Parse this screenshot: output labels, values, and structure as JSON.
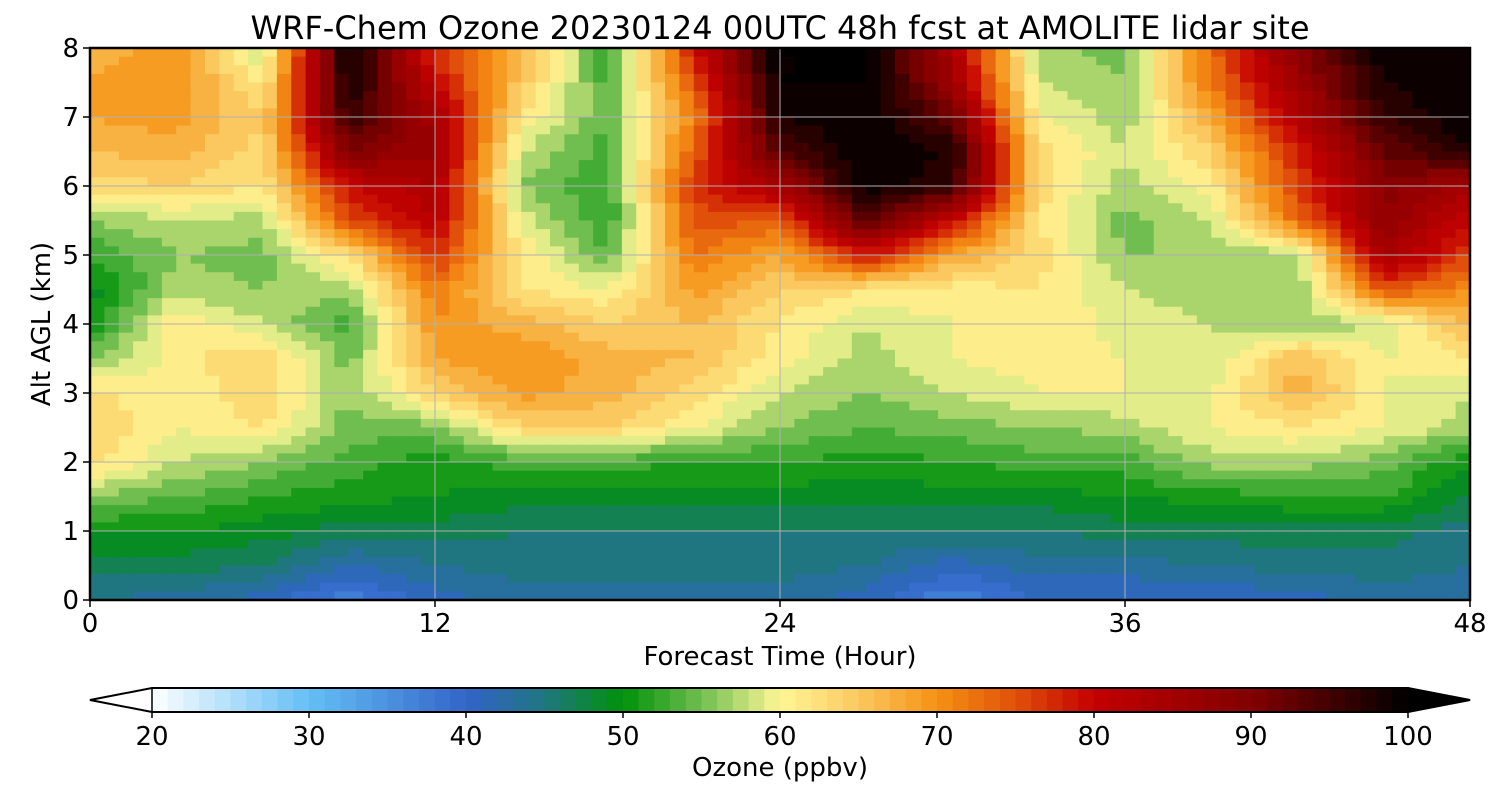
{
  "chart_data": {
    "type": "heatmap",
    "title": "WRF-Chem Ozone  20230124 00UTC 48h fcst at AMOLITE lidar site",
    "xlabel": "Forecast Time (Hour)",
    "ylabel": "Alt AGL (km)",
    "xlim": [
      0,
      48
    ],
    "ylim": [
      0,
      8
    ],
    "x_ticks": [
      0,
      12,
      24,
      36,
      48
    ],
    "y_ticks": [
      0,
      1,
      2,
      3,
      4,
      5,
      6,
      7,
      8
    ],
    "grid": true,
    "colorbar": {
      "label": "Ozone  (ppbv)",
      "min": 20,
      "max": 100,
      "ticks": [
        20,
        30,
        40,
        50,
        60,
        70,
        80,
        90,
        100
      ],
      "extend": "both",
      "orientation": "horizontal",
      "placement": "bottom"
    },
    "x": [
      0,
      3,
      6,
      9,
      12,
      15,
      18,
      21,
      24,
      27,
      30,
      33,
      36,
      39,
      42,
      45,
      48
    ],
    "y": [
      0,
      0.5,
      1,
      1.5,
      2,
      2.5,
      3,
      3.5,
      4,
      4.5,
      5,
      5.5,
      6,
      6.5,
      7,
      7.5,
      8
    ],
    "z": [
      [
        44,
        43,
        41,
        37,
        41,
        43,
        43,
        43,
        43,
        41,
        36,
        40,
        40,
        40,
        41,
        43,
        43
      ],
      [
        47,
        47,
        46,
        42,
        44,
        45,
        45,
        45,
        45,
        44,
        41,
        43,
        43,
        44,
        45,
        45,
        44
      ],
      [
        50,
        50,
        49,
        47,
        47,
        46,
        46,
        46,
        46,
        46,
        46,
        46,
        47,
        47,
        47,
        47,
        45
      ],
      [
        56,
        54,
        52,
        51,
        50,
        49,
        49,
        49,
        49,
        49,
        49,
        49,
        50,
        51,
        52,
        52,
        48
      ],
      [
        63,
        58,
        56,
        53,
        51,
        53,
        53,
        52,
        52,
        51,
        52,
        53,
        53,
        57,
        57,
        55,
        50
      ],
      [
        64,
        60,
        62,
        55,
        55,
        64,
        64,
        60,
        56,
        54,
        55,
        56,
        57,
        60,
        62,
        60,
        57
      ],
      [
        63,
        60,
        64,
        56,
        64,
        69,
        67,
        63,
        58,
        56,
        58,
        60,
        60,
        60,
        67,
        60,
        58
      ],
      [
        56,
        61,
        64,
        55,
        68,
        70,
        67,
        66,
        61,
        57,
        60,
        61,
        60,
        58,
        66,
        60,
        62
      ],
      [
        50,
        62,
        58,
        53,
        70,
        67,
        64,
        66,
        62,
        58,
        60,
        62,
        59,
        58,
        56,
        58,
        67
      ],
      [
        49,
        57,
        56,
        57,
        72,
        62,
        60,
        69,
        64,
        62,
        61,
        62,
        58,
        57,
        56,
        75,
        70
      ],
      [
        52,
        56,
        55,
        63,
        77,
        62,
        54,
        72,
        68,
        79,
        68,
        63,
        56,
        56,
        57,
        85,
        76
      ],
      [
        56,
        58,
        57,
        75,
        82,
        59,
        52,
        75,
        74,
        94,
        80,
        62,
        55,
        58,
        73,
        88,
        80
      ],
      [
        63,
        64,
        62,
        80,
        84,
        56,
        52,
        77,
        85,
        100,
        96,
        63,
        57,
        61,
        76,
        89,
        85
      ],
      [
        66,
        67,
        63,
        90,
        86,
        58,
        53,
        74,
        94,
        100,
        98,
        63,
        58,
        64,
        78,
        92,
        98
      ],
      [
        68,
        69,
        64,
        96,
        85,
        62,
        54,
        71,
        98,
        100,
        92,
        60,
        57,
        68,
        83,
        96,
        100
      ],
      [
        68,
        70,
        61,
        99,
        80,
        65,
        53,
        75,
        100,
        100,
        86,
        58,
        56,
        72,
        86,
        98,
        100
      ],
      [
        67,
        69,
        58,
        100,
        77,
        67,
        52,
        79,
        100,
        100,
        84,
        57,
        55,
        73,
        89,
        100,
        100
      ]
    ]
  }
}
